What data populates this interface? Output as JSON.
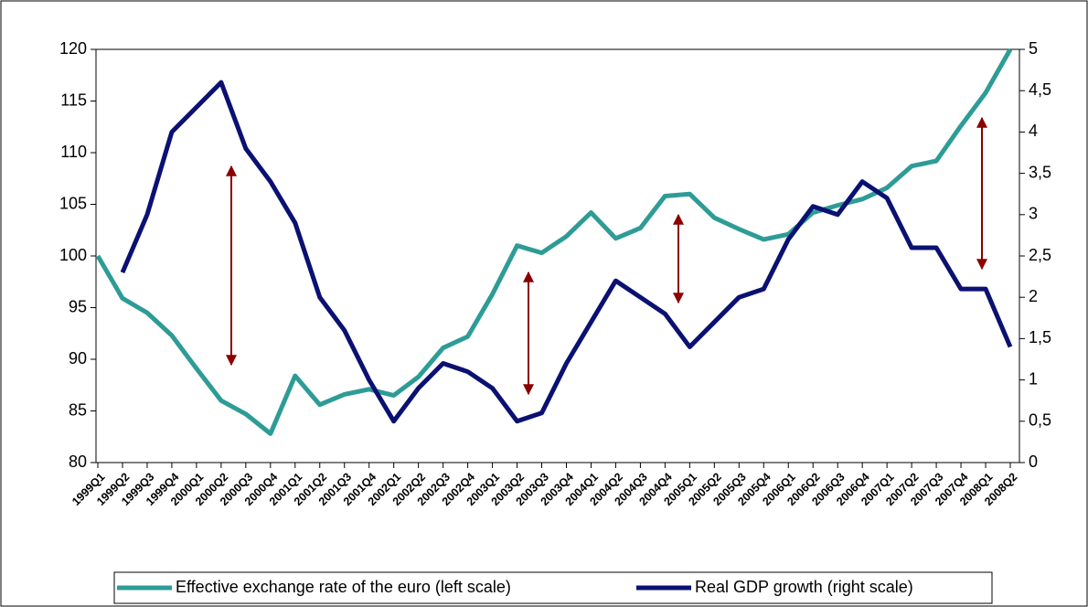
{
  "chart_data": {
    "type": "line",
    "categories": [
      "1999Q1",
      "1999Q2",
      "1999Q3",
      "1999Q4",
      "2000Q1",
      "2000Q2",
      "2000Q3",
      "2000Q4",
      "2001Q1",
      "2001Q2",
      "2001Q3",
      "2001Q4",
      "2002Q1",
      "2002Q2",
      "2002Q3",
      "2002Q4",
      "2003Q1",
      "2003Q2",
      "2003Q3",
      "2003Q4",
      "2004Q1",
      "2004Q2",
      "2004Q3",
      "2004Q4",
      "2005Q1",
      "2005Q2",
      "2005Q3",
      "2005Q4",
      "2006Q1",
      "2006Q2",
      "2006Q3",
      "2006Q4",
      "2007Q1",
      "2007Q2",
      "2007Q3",
      "2007Q4",
      "2008Q1",
      "2008Q2"
    ],
    "series": [
      {
        "name": "Effective exchange rate of the euro (left scale)",
        "color": "#2e9c96",
        "values": [
          100,
          95.9,
          94.5,
          92.3,
          89.1,
          86,
          84.7,
          82.8,
          88.4,
          85.6,
          86.6,
          87.1,
          86.5,
          88.3,
          91.1,
          92.2,
          96.3,
          101,
          100.3,
          101.9,
          104.2,
          101.7,
          102.7,
          105.8,
          106,
          103.7,
          102.6,
          101.6,
          102.1,
          104.2,
          104.9,
          105.5,
          106.6,
          108.7,
          109.2,
          112.6,
          115.8,
          120
        ]
      },
      {
        "name": "Real GDP growth (right scale)",
        "color": "#0a1172",
        "axis": "y2",
        "values": [
          null,
          2.3,
          3.0,
          4.0,
          4.3,
          4.6,
          3.8,
          3.4,
          2.9,
          2.0,
          1.6,
          1.0,
          0.5,
          0.9,
          1.2,
          1.1,
          0.9,
          0.5,
          0.6,
          1.2,
          1.7,
          2.2,
          2.0,
          1.8,
          1.4,
          1.7,
          2.0,
          2.1,
          2.7,
          3.1,
          3.0,
          3.4,
          3.2,
          2.6,
          2.6,
          2.1,
          2.1,
          1.4
        ]
      }
    ],
    "ylim": [
      80,
      120
    ],
    "yticks": [
      80,
      85,
      90,
      95,
      100,
      105,
      110,
      115,
      120
    ],
    "y2lim": [
      0,
      5
    ],
    "y2ticks": [
      0,
      {
        "value": 0.5,
        "label": "0,5"
      },
      1,
      {
        "value": 1.5,
        "label": "1,5"
      },
      2,
      {
        "value": 2.5,
        "label": "2,5"
      },
      3,
      {
        "value": 3.5,
        "label": "3,5"
      },
      4,
      {
        "value": 4.5,
        "label": "4,5"
      },
      5
    ],
    "legend": "bottom"
  }
}
